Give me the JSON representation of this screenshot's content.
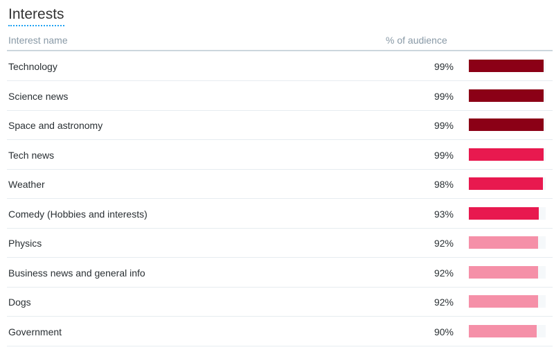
{
  "title": "Interests",
  "columns": {
    "name": "Interest name",
    "pct": "% of audience"
  },
  "rows": [
    {
      "name": "Technology",
      "pct": "99%",
      "value": 99,
      "color": "#8b0016"
    },
    {
      "name": "Science news",
      "pct": "99%",
      "value": 99,
      "color": "#8b0016"
    },
    {
      "name": "Space and astronomy",
      "pct": "99%",
      "value": 99,
      "color": "#8b0016"
    },
    {
      "name": "Tech news",
      "pct": "99%",
      "value": 99,
      "color": "#e8194f"
    },
    {
      "name": "Weather",
      "pct": "98%",
      "value": 98,
      "color": "#e8194f"
    },
    {
      "name": "Comedy (Hobbies and interests)",
      "pct": "93%",
      "value": 93,
      "color": "#e8194f"
    },
    {
      "name": "Physics",
      "pct": "92%",
      "value": 92,
      "color": "#f590a8"
    },
    {
      "name": "Business news and general info",
      "pct": "92%",
      "value": 92,
      "color": "#f590a8"
    },
    {
      "name": "Dogs",
      "pct": "92%",
      "value": 92,
      "color": "#f590a8"
    },
    {
      "name": "Government",
      "pct": "90%",
      "value": 90,
      "color": "#f590a8"
    }
  ]
}
